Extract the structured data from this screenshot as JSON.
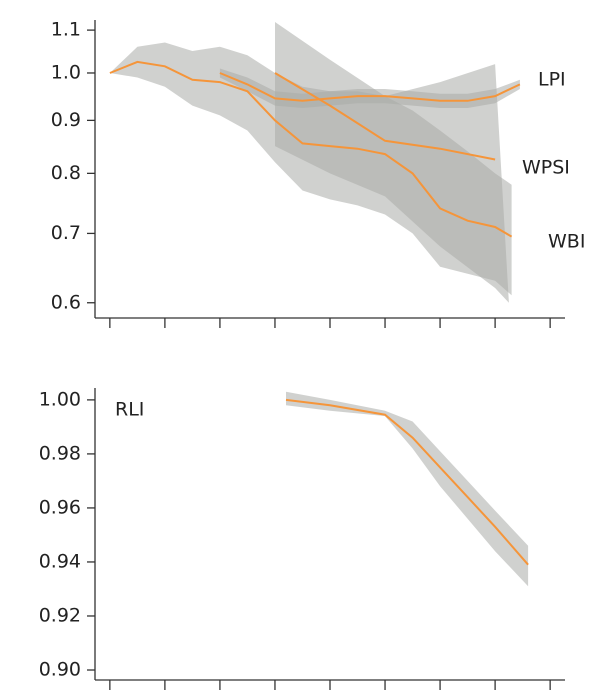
{
  "chart_data": [
    {
      "type": "line",
      "yscale": "log",
      "ylim": [
        0.58,
        1.125
      ],
      "yticks": [
        0.6,
        0.7,
        0.8,
        0.9,
        {
          "value": 1,
          "label": "1.0"
        },
        1.1
      ],
      "xlim": [
        -0.27,
        8.27
      ],
      "xticks": [
        0,
        1,
        2,
        3,
        4,
        5,
        6,
        7,
        8
      ],
      "band_color": "#a9aba7",
      "series": [
        {
          "name": "LPI",
          "color": "#f5953a",
          "x": [
            0,
            0.5,
            1,
            1.5,
            2,
            2.5,
            3,
            3.5,
            4,
            4.5,
            5,
            5.5,
            6,
            6.5,
            7,
            7.3
          ],
          "values": [
            1.0,
            1.025,
            1.015,
            0.985,
            0.98,
            0.96,
            0.9,
            0.855,
            0.85,
            0.845,
            0.835,
            0.8,
            0.74,
            0.72,
            0.71,
            0.695
          ],
          "upper": [
            1.0,
            1.06,
            1.07,
            1.05,
            1.06,
            1.04,
            1.0,
            0.97,
            0.96,
            0.96,
            0.95,
            0.92,
            0.88,
            0.84,
            0.8,
            0.78
          ],
          "lower": [
            1.0,
            0.99,
            0.97,
            0.93,
            0.91,
            0.88,
            0.82,
            0.77,
            0.755,
            0.745,
            0.73,
            0.7,
            0.65,
            0.64,
            0.63,
            0.61
          ]
        },
        {
          "name": "WPSI",
          "color": "#f5953a",
          "x": [
            3,
            4,
            5,
            6,
            7,
            7.25
          ],
          "values": [
            1.0,
            0.93,
            0.86,
            0.845,
            0.825,
            null
          ],
          "upper": [
            1.12,
            1.03,
            0.95,
            0.98,
            1.02,
            0.6
          ],
          "lower": [
            0.85,
            0.8,
            0.76,
            0.68,
            0.62,
            0.6
          ]
        },
        {
          "name": "WBI",
          "color": "#f5953a",
          "x": [
            2,
            2.5,
            3,
            3.5,
            4,
            4.5,
            5,
            5.5,
            6,
            6.5,
            7,
            7.45
          ],
          "values": [
            1.0,
            0.975,
            0.945,
            0.94,
            0.945,
            0.95,
            0.95,
            0.945,
            0.94,
            0.94,
            0.95,
            0.975
          ],
          "upper": [
            1.01,
            0.99,
            0.96,
            0.955,
            0.96,
            0.965,
            0.965,
            0.96,
            0.955,
            0.955,
            0.965,
            0.985
          ],
          "lower": [
            0.99,
            0.96,
            0.93,
            0.925,
            0.93,
            0.935,
            0.935,
            0.93,
            0.925,
            0.925,
            0.935,
            0.965
          ]
        }
      ]
    },
    {
      "type": "line",
      "ylim": [
        0.8963,
        1.0044
      ],
      "yticks": [
        {
          "value": 0.9,
          "label": "0.90"
        },
        {
          "value": 0.92,
          "label": "0.92"
        },
        {
          "value": 0.94,
          "label": "0.94"
        },
        {
          "value": 0.96,
          "label": "0.96"
        },
        {
          "value": 0.98,
          "label": "0.98"
        },
        {
          "value": 1,
          "label": "1.00"
        }
      ],
      "xlim": [
        -0.27,
        8.27
      ],
      "xticks": [
        0,
        1,
        2,
        3,
        4,
        5,
        6,
        7,
        8
      ],
      "band_color": "#a9aba7",
      "series": [
        {
          "name": "RLI",
          "color": "#f5953a",
          "x": [
            3.2,
            4,
            5,
            5.5,
            6,
            6.5,
            7,
            7.6
          ],
          "values": [
            1.0,
            0.998,
            0.9945,
            0.986,
            0.975,
            0.964,
            0.953,
            0.939
          ],
          "upper": [
            1.003,
            1.0,
            0.996,
            0.992,
            0.981,
            0.97,
            0.959,
            0.946
          ],
          "lower": [
            0.998,
            0.996,
            0.994,
            0.982,
            0.968,
            0.956,
            0.944,
            0.931
          ]
        }
      ]
    }
  ]
}
